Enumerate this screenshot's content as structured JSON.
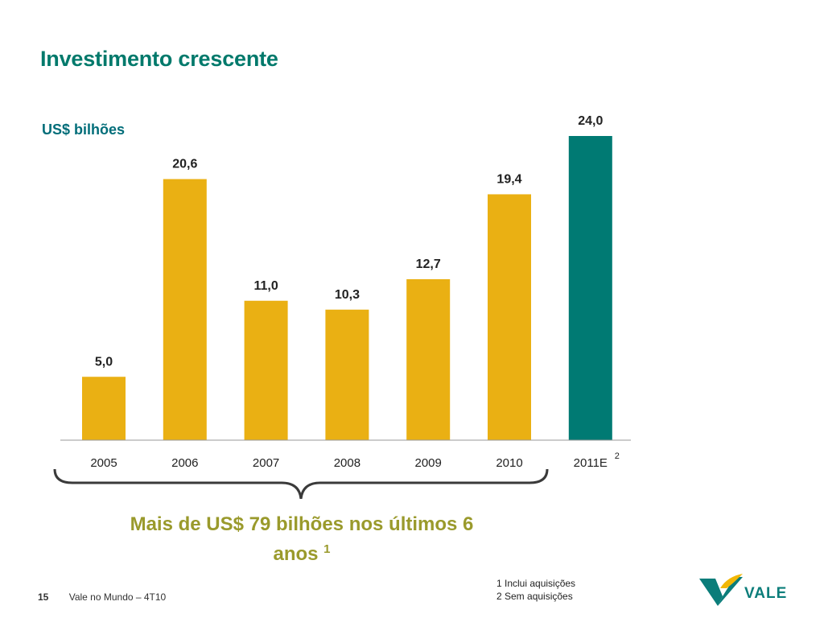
{
  "slide": {
    "title": "Investimento crescente",
    "unit": "US$ bilhões",
    "callout_text": "Mais de US$ 79 bilhões nos últimos 6 anos",
    "callout_sup": "1",
    "footnotes": [
      "1 Inclui aquisições",
      "2 Sem aquisições"
    ],
    "page_number": "15",
    "footer_text": "Vale no Mundo – 4T10",
    "logo_text": "VALE"
  },
  "colors": {
    "bar": "#eab013",
    "bar_highlight": "#007a73",
    "title": "#00796b",
    "callout": "#9a9a2c"
  },
  "chart_data": {
    "type": "bar",
    "title": "",
    "xlabel": "",
    "ylabel": "US$ bilhões",
    "categories": [
      "2005",
      "2006",
      "2007",
      "2008",
      "2009",
      "2010",
      "2011E"
    ],
    "values": [
      5.0,
      20.6,
      11.0,
      10.3,
      12.7,
      19.4,
      24.0
    ],
    "value_labels": [
      "5,0",
      "20,6",
      "11,0",
      "10,3",
      "12,7",
      "19,4",
      "24,0"
    ],
    "highlight_category": "2011E",
    "category_superscripts": {
      "2011E": "2"
    },
    "ylim": [
      0,
      24
    ],
    "grid": false,
    "legend": "none"
  }
}
